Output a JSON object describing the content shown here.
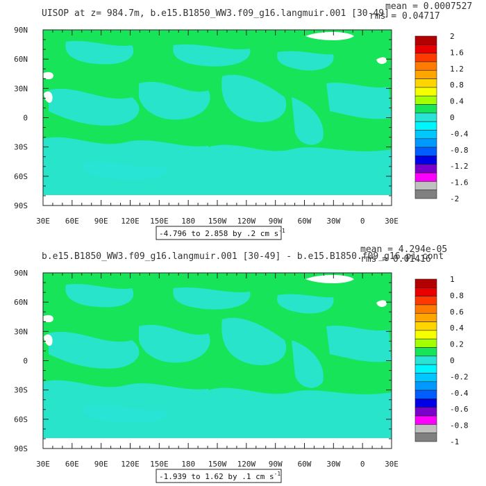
{
  "colors": {
    "ocean_main": "#18e45a",
    "ocean_light": "#29e3d6",
    "land_hole": "#ffffff",
    "frame": "#222222"
  },
  "axis": {
    "lon_ticks": [
      "30E",
      "60E",
      "90E",
      "120E",
      "150E",
      "180",
      "150W",
      "120W",
      "90W",
      "60W",
      "30W",
      "0",
      "30E"
    ],
    "lat_ticks": [
      "90N",
      "60N",
      "30N",
      "0",
      "30S",
      "60S",
      "90S"
    ]
  },
  "panels": [
    {
      "title": "UISOP at z= 984.7m, b.e15.B1850_WW3.f09_g16.langmuir.001 [30-49]",
      "stat_mean": "mean = 0.0007527",
      "stat_rms": "rms = 0.04717",
      "range_label": "-4.796 to 2.858 by .2 cm s",
      "range_unit_sup": "-1",
      "colorbar": {
        "labels": [
          "2",
          "1.6",
          "1.2",
          "0.8",
          "0.4",
          "0",
          "-0.4",
          "-0.8",
          "-1.2",
          "-1.6",
          "-2"
        ],
        "colors": [
          "#b30000",
          "#e80000",
          "#ff3a00",
          "#ff7a00",
          "#ffa500",
          "#ffd500",
          "#f5ff00",
          "#a4ff00",
          "#18e45a",
          "#29e3d6",
          "#00f5ff",
          "#00c8ff",
          "#0099ff",
          "#005dff",
          "#0000e6",
          "#7a00cc",
          "#ff00ff",
          "#c0c0c0",
          "#808080"
        ]
      }
    },
    {
      "title": "b.e15.B1850_WW3.f09_g16.langmuir.001 [30-49] - b.e15.B1850.f09_g16.pi_cont",
      "stat_mean": "mean = 4.294e-05",
      "stat_rms": "rms = 0.01416",
      "range_label": "-1.939 to 1.62 by .1 cm s",
      "range_unit_sup": "-1",
      "colorbar": {
        "labels": [
          "1",
          "0.8",
          "0.6",
          "0.4",
          "0.2",
          "0",
          "-0.2",
          "-0.4",
          "-0.6",
          "-0.8",
          "-1"
        ],
        "colors": [
          "#b30000",
          "#e80000",
          "#ff3a00",
          "#ff7a00",
          "#ffa500",
          "#ffd500",
          "#f5ff00",
          "#a4ff00",
          "#18e45a",
          "#29e3d6",
          "#00f5ff",
          "#00c8ff",
          "#0099ff",
          "#005dff",
          "#0000e6",
          "#7a00cc",
          "#ff00ff",
          "#c0c0c0",
          "#808080"
        ]
      }
    }
  ]
}
